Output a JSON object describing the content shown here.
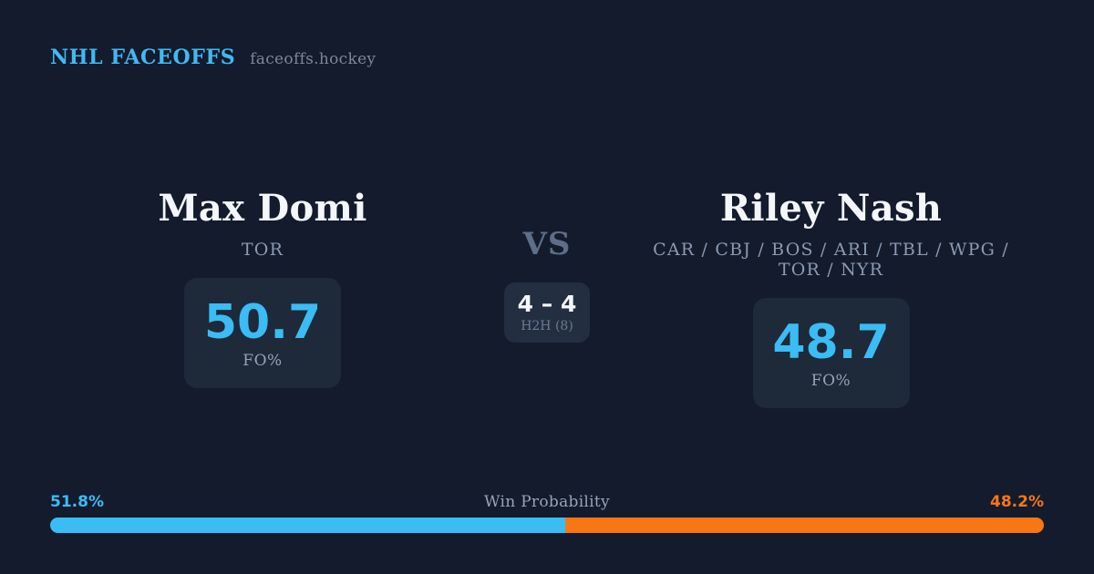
{
  "header": {
    "brand": "NHL FACEOFFS",
    "site": "faceoffs.hockey"
  },
  "matchup": {
    "player1": {
      "name": "Max Domi",
      "teams": "TOR",
      "fo_pct": "50.7",
      "stat_label": "FO%"
    },
    "vs_label": "VS",
    "h2h": {
      "score": "4 – 4",
      "label": "H2H (8)"
    },
    "player2": {
      "name": "Riley Nash",
      "teams": "CAR / CBJ / BOS / ARI / TBL / WPG / TOR / NYR",
      "fo_pct": "48.7",
      "stat_label": "FO%"
    }
  },
  "win_probability": {
    "label": "Win Probability",
    "left_pct": "51.8%",
    "right_pct": "48.2%",
    "left_value": 51.8,
    "right_value": 48.2
  },
  "colors": {
    "background": "#131b2d",
    "card": "#1e2939",
    "accent_blue": "#3abcf5",
    "accent_orange": "#f87614",
    "secondary_text": "#8b9ab2"
  }
}
